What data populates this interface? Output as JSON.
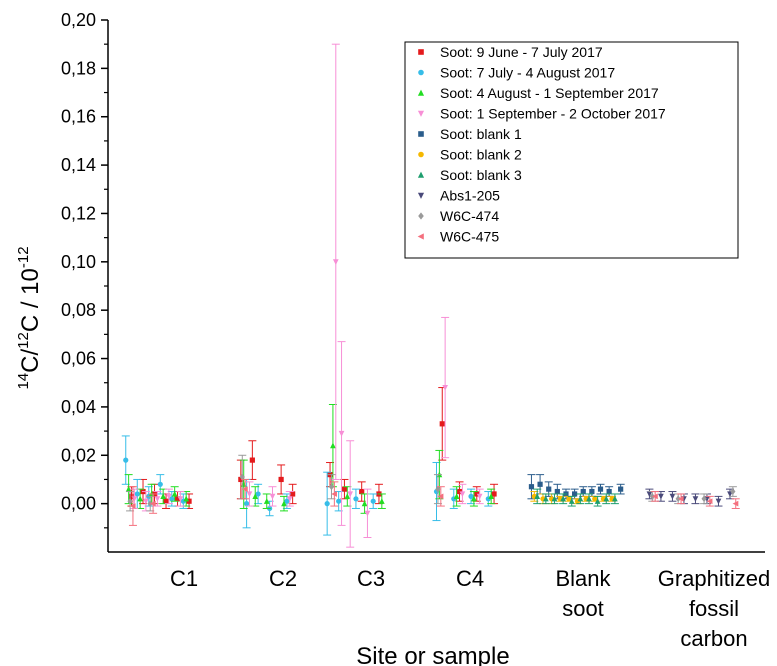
{
  "chart_data": {
    "type": "scatter",
    "xlabel": "Site or sample",
    "ylabel_parts": {
      "pre": "14",
      "c1": "C/",
      "mid": "12",
      "c2": "C / 10",
      "exp": "-12"
    },
    "ylim": [
      -0.02,
      0.2
    ],
    "y_ticks": [
      "0,00",
      "0,02",
      "0,04",
      "0,06",
      "0,08",
      "0,10",
      "0,12",
      "0,14",
      "0,16",
      "0,18",
      "0,20"
    ],
    "categories": [
      {
        "id": "C1",
        "lines": [
          "C1"
        ]
      },
      {
        "id": "C2",
        "lines": [
          "C2"
        ]
      },
      {
        "id": "C3",
        "lines": [
          "C3"
        ]
      },
      {
        "id": "C4",
        "lines": [
          "C4"
        ]
      },
      {
        "id": "blank-soot",
        "lines": [
          "Blank",
          "soot"
        ]
      },
      {
        "id": "graphitized",
        "lines": [
          "Graphitized",
          "fossil",
          "carbon"
        ]
      }
    ],
    "legend_position": "top-right",
    "grid": false,
    "series": [
      {
        "name": "Soot: 9 June - 7 July  2017",
        "color": "#e41a1c",
        "marker": "square",
        "points": [
          [
            0.4,
            0.003,
            0.004
          ],
          [
            0.8,
            0.005,
            0.005
          ],
          [
            1.2,
            0.004,
            0.004
          ],
          [
            1.6,
            0.001,
            0.003
          ],
          [
            2.0,
            0.002,
            0.003
          ],
          [
            2.4,
            0.001,
            0.003
          ],
          [
            4.2,
            0.01,
            0.008
          ],
          [
            4.6,
            0.018,
            0.008
          ],
          [
            5.6,
            0.01,
            0.006
          ],
          [
            6.0,
            0.004,
            0.004
          ],
          [
            7.3,
            0.012,
            0.005
          ],
          [
            7.8,
            0.006,
            0.004
          ],
          [
            8.4,
            0.005,
            0.004
          ],
          [
            9.0,
            0.004,
            0.004
          ],
          [
            11.2,
            0.033,
            0.015
          ],
          [
            11.8,
            0.005,
            0.004
          ],
          [
            12.4,
            0.004,
            0.003
          ],
          [
            13.0,
            0.004,
            0.004
          ]
        ]
      },
      {
        "name": "Soot: 7 July - 4 August 2017",
        "color": "#36bde8",
        "marker": "circle",
        "points": [
          [
            0.2,
            0.018,
            0.01
          ],
          [
            0.6,
            0.004,
            0.006
          ],
          [
            1.0,
            0.003,
            0.004
          ],
          [
            1.4,
            0.008,
            0.004
          ],
          [
            1.8,
            0.002,
            0.003
          ],
          [
            2.2,
            0.001,
            0.003
          ],
          [
            4.4,
            0.0,
            0.01
          ],
          [
            4.8,
            0.004,
            0.004
          ],
          [
            5.2,
            -0.002,
            0.003
          ],
          [
            5.8,
            0.001,
            0.003
          ],
          [
            7.2,
            0.0,
            0.013
          ],
          [
            7.6,
            0.001,
            0.004
          ],
          [
            8.2,
            0.002,
            0.004
          ],
          [
            8.8,
            0.001,
            0.003
          ],
          [
            11.0,
            0.005,
            0.012
          ],
          [
            11.6,
            0.002,
            0.004
          ],
          [
            12.2,
            0.003,
            0.003
          ],
          [
            12.8,
            0.002,
            0.003
          ]
        ]
      },
      {
        "name": "Soot: 4 August - 1 September 2017",
        "color": "#22dd22",
        "marker": "triangle-up",
        "points": [
          [
            0.3,
            0.006,
            0.006
          ],
          [
            0.7,
            0.002,
            0.004
          ],
          [
            1.1,
            0.004,
            0.004
          ],
          [
            1.5,
            0.003,
            0.003
          ],
          [
            1.9,
            0.004,
            0.003
          ],
          [
            2.3,
            0.002,
            0.003
          ],
          [
            4.3,
            0.008,
            0.01
          ],
          [
            4.7,
            0.003,
            0.004
          ],
          [
            5.1,
            0.001,
            0.003
          ],
          [
            5.7,
            0.0,
            0.003
          ],
          [
            7.4,
            0.024,
            0.017
          ],
          [
            7.9,
            0.003,
            0.004
          ],
          [
            8.5,
            0.0,
            0.004
          ],
          [
            9.1,
            0.001,
            0.003
          ],
          [
            11.1,
            0.012,
            0.01
          ],
          [
            11.7,
            0.003,
            0.004
          ],
          [
            12.3,
            0.002,
            0.003
          ],
          [
            12.9,
            0.003,
            0.003
          ]
        ]
      },
      {
        "name": "Soot: 1 September - 2 October  2017",
        "color": "#f78fd6",
        "marker": "triangle-down",
        "points": [
          [
            0.5,
            0.002,
            0.004
          ],
          [
            0.9,
            0.001,
            0.004
          ],
          [
            1.3,
            0.002,
            0.003
          ],
          [
            1.7,
            0.003,
            0.003
          ],
          [
            2.1,
            0.002,
            0.003
          ],
          [
            4.5,
            0.004,
            0.005
          ],
          [
            5.3,
            0.003,
            0.004
          ],
          [
            5.9,
            0.002,
            0.003
          ],
          [
            7.5,
            0.1,
            0.09
          ],
          [
            7.7,
            0.029,
            0.038
          ],
          [
            8.0,
            0.004,
            0.022
          ],
          [
            8.6,
            -0.004,
            0.01
          ],
          [
            11.3,
            0.048,
            0.029
          ],
          [
            11.9,
            0.004,
            0.004
          ],
          [
            12.5,
            0.003,
            0.003
          ]
        ]
      },
      {
        "name": "Soot: blank 1",
        "color": "#2b5d8c",
        "marker": "square",
        "points": [
          [
            14.3,
            0.007,
            0.005
          ],
          [
            14.6,
            0.008,
            0.004
          ],
          [
            14.9,
            0.006,
            0.003
          ],
          [
            15.2,
            0.005,
            0.003
          ],
          [
            15.5,
            0.004,
            0.002
          ],
          [
            15.8,
            0.004,
            0.002
          ],
          [
            16.1,
            0.005,
            0.002
          ],
          [
            16.4,
            0.005,
            0.002
          ],
          [
            16.7,
            0.006,
            0.002
          ],
          [
            17.0,
            0.005,
            0.002
          ],
          [
            17.4,
            0.006,
            0.002
          ]
        ]
      },
      {
        "name": "Soot: blank 2",
        "color": "#f5b800",
        "marker": "circle",
        "points": [
          [
            14.4,
            0.003,
            0.002
          ],
          [
            14.7,
            0.002,
            0.002
          ],
          [
            15.0,
            0.002,
            0.002
          ],
          [
            15.3,
            0.002,
            0.001
          ],
          [
            15.6,
            0.002,
            0.001
          ],
          [
            15.9,
            0.001,
            0.001
          ],
          [
            16.2,
            0.002,
            0.001
          ],
          [
            16.5,
            0.002,
            0.001
          ],
          [
            16.8,
            0.002,
            0.001
          ],
          [
            17.1,
            0.002,
            0.001
          ]
        ]
      },
      {
        "name": "Soot: blank 3",
        "color": "#1e9e6e",
        "marker": "triangle-up",
        "points": [
          [
            14.5,
            0.003,
            0.003
          ],
          [
            14.8,
            0.002,
            0.002
          ],
          [
            15.1,
            0.002,
            0.002
          ],
          [
            15.4,
            0.002,
            0.002
          ],
          [
            15.7,
            0.001,
            0.002
          ],
          [
            16.0,
            0.002,
            0.002
          ],
          [
            16.3,
            0.002,
            0.002
          ],
          [
            16.6,
            0.001,
            0.002
          ],
          [
            16.9,
            0.002,
            0.002
          ],
          [
            17.2,
            0.002,
            0.002
          ]
        ]
      },
      {
        "name": "Abs1-205",
        "color": "#4a4a7a",
        "marker": "triangle-down",
        "points": [
          [
            18.4,
            0.004,
            0.002
          ],
          [
            18.8,
            0.003,
            0.002
          ],
          [
            19.2,
            0.003,
            0.002
          ],
          [
            19.6,
            0.002,
            0.002
          ],
          [
            20.0,
            0.002,
            0.002
          ],
          [
            20.4,
            0.002,
            0.002
          ],
          [
            20.8,
            0.001,
            0.002
          ],
          [
            21.2,
            0.004,
            0.002
          ]
        ]
      },
      {
        "name": "W6C-474",
        "color": "#9a9a9a",
        "marker": "diamond",
        "points": [
          [
            0.35,
            0.001,
            0.004
          ],
          [
            1.05,
            0.0,
            0.003
          ],
          [
            4.25,
            0.011,
            0.009
          ],
          [
            7.35,
            0.007,
            0.005
          ],
          [
            11.05,
            0.006,
            0.006
          ],
          [
            18.5,
            0.003,
            0.002
          ],
          [
            19.4,
            0.002,
            0.002
          ],
          [
            20.3,
            0.002,
            0.002
          ],
          [
            21.3,
            0.005,
            0.002
          ]
        ]
      },
      {
        "name": "W6C-475",
        "color": "#f4707e",
        "marker": "triangle-left",
        "points": [
          [
            0.45,
            -0.001,
            0.008
          ],
          [
            1.15,
            0.0,
            0.004
          ],
          [
            4.35,
            0.006,
            0.004
          ],
          [
            7.45,
            0.004,
            0.005
          ],
          [
            11.15,
            0.003,
            0.004
          ],
          [
            18.6,
            0.003,
            0.002
          ],
          [
            19.5,
            0.002,
            0.002
          ],
          [
            20.5,
            0.001,
            0.002
          ],
          [
            21.4,
            0.0,
            0.002
          ]
        ]
      }
    ]
  }
}
